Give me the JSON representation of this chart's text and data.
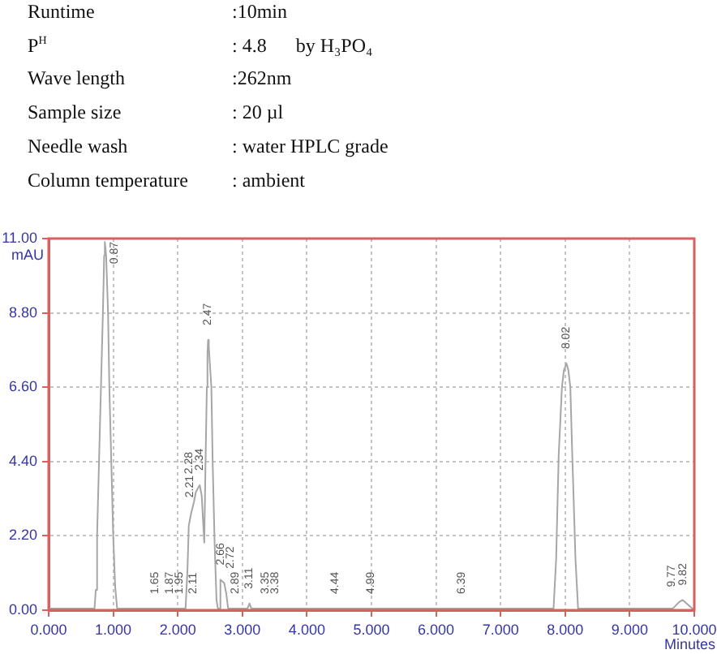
{
  "chart_data": {
    "type": "line",
    "annotations": [
      "Runtime",
      ":10min",
      "P$^{H}$",
      ": 4.8      by H₃PO₄",
      "Wave length",
      ":262nm",
      "Sample size",
      ": 20 µl",
      "Needle wash",
      ": water HPLC grade",
      "Column temperature",
      ": ambient",
      {
        "text": "0.87",
        "x": 0.87,
        "y": 10.9
      },
      {
        "text": "1.65",
        "x": 1.65,
        "y": 0.05
      },
      {
        "text": "1.87",
        "x": 1.87,
        "y": 0.05
      },
      {
        "text": "1.95",
        "x": 1.95,
        "y": 0.05
      },
      {
        "text": "2.11",
        "x": 2.11,
        "y": 0.05
      },
      {
        "text": "2.21",
        "x": 2.21,
        "y": 2.9
      },
      {
        "text": "2.28",
        "x": 2.28,
        "y": 3.5
      },
      {
        "text": "2.34",
        "x": 2.34,
        "y": 3.7
      },
      {
        "text": "2.47",
        "x": 2.47,
        "y": 8.0
      },
      {
        "text": "2.66",
        "x": 2.66,
        "y": 0.9
      },
      {
        "text": "2.72",
        "x": 2.72,
        "y": 0.8
      },
      {
        "text": "2.89",
        "x": 2.89,
        "y": 0.05
      },
      {
        "text": "3.11",
        "x": 3.11,
        "y": 0.2
      },
      {
        "text": "3.35",
        "x": 3.35,
        "y": 0.05
      },
      {
        "text": "3.38",
        "x": 3.38,
        "y": 0.05
      },
      {
        "text": "4.44",
        "x": 4.44,
        "y": 0.05
      },
      {
        "text": "4.99",
        "x": 4.99,
        "y": 0.05
      },
      {
        "text": "6.39",
        "x": 6.39,
        "y": 0.05
      },
      {
        "text": "8.02",
        "x": 8.02,
        "y": 7.3
      },
      {
        "text": "9.77",
        "x": 9.77,
        "y": 0.25
      },
      {
        "text": "9.82",
        "x": 9.82,
        "y": 0.3
      }
    ],
    "xlabel": "Minutes",
    "ylabel": "mAU",
    "x": [
      0,
      0.71,
      0.73,
      0.75,
      0.78,
      0.81,
      0.84,
      0.86,
      0.87,
      0.89,
      0.92,
      0.94,
      0.97,
      1.0,
      1.03,
      1.06,
      2.12,
      2.15,
      2.17,
      2.21,
      2.25,
      2.28,
      2.31,
      2.34,
      2.37,
      2.39,
      2.41,
      2.43,
      2.45,
      2.46,
      2.47,
      2.48,
      2.5,
      2.52,
      2.54,
      2.57,
      2.6,
      2.62,
      2.64,
      2.66,
      2.69,
      2.72,
      2.75,
      2.78,
      3.08,
      3.11,
      3.14,
      7.82,
      7.86,
      7.9,
      7.95,
      7.98,
      8.02,
      8.05,
      8.08,
      8.11,
      8.16,
      8.2,
      9.67,
      9.77,
      9.82,
      9.97,
      10
    ],
    "values": [
      0.05,
      0.05,
      0.6,
      2.2,
      4.4,
      6.6,
      8.8,
      10.5,
      10.9,
      10.5,
      8.8,
      6.6,
      4.4,
      2.2,
      0.7,
      0.05,
      0.05,
      1.2,
      2.5,
      2.9,
      3.2,
      3.5,
      3.6,
      3.7,
      3.4,
      2.7,
      2.0,
      4.4,
      6.6,
      7.6,
      8.0,
      7.8,
      7.2,
      6.6,
      4.4,
      2.0,
      0.3,
      0.05,
      0.05,
      0.9,
      0.85,
      0.8,
      0.5,
      0.05,
      0.05,
      0.2,
      0.05,
      0.05,
      1.5,
      4.6,
      6.6,
      7.1,
      7.3,
      7.1,
      6.6,
      4.6,
      1.5,
      0.05,
      0.05,
      0.25,
      0.3,
      0.05,
      0.05
    ],
    "color": "#a6a6a6",
    "xlim": [
      0,
      10
    ],
    "xticks": [
      {
        "value": 0,
        "label": "0.000"
      },
      {
        "value": 1,
        "label": "1.000"
      },
      {
        "value": 2,
        "label": "2.000"
      },
      {
        "value": 3,
        "label": "3.000"
      },
      {
        "value": 4,
        "label": "4.000"
      },
      {
        "value": 5,
        "label": "5.000"
      },
      {
        "value": 6,
        "label": "6.000"
      },
      {
        "value": 7,
        "label": "7.000"
      },
      {
        "value": 8,
        "label": "8.000"
      },
      {
        "value": 9,
        "label": "9.000"
      },
      {
        "value": 10,
        "label": "10.000"
      }
    ],
    "ylim": [
      0,
      11
    ],
    "yticks": [
      {
        "value": 0,
        "label": "0.00"
      },
      {
        "value": 2.2,
        "label": "2.20"
      },
      {
        "value": 4.4,
        "label": "4.40"
      },
      {
        "value": 6.6,
        "label": "6.60"
      },
      {
        "value": 8.8,
        "label": "8.80"
      },
      {
        "value": 11,
        "label": "11.00"
      }
    ],
    "grid": true
  }
}
